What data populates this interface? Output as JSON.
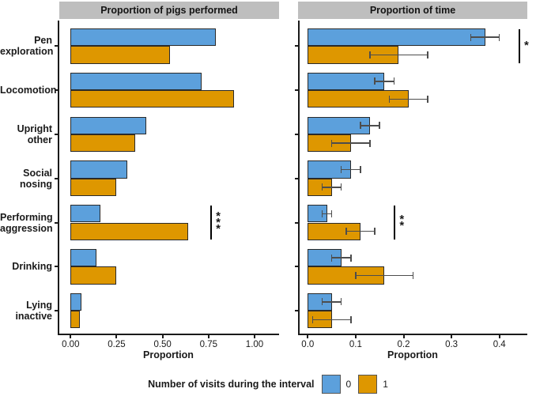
{
  "figure": {
    "x_axis_title": "Proportion",
    "colors": {
      "series_blue": "#5CA0DC",
      "series_orange": "#DE9700",
      "strip_background": "#BEBEBE",
      "bar_border": "#2A2A2A",
      "error_bar": "#4D4D4D",
      "axis": "#1A1A1A"
    },
    "legend": {
      "title": "Number of visits during the interval",
      "items": [
        {
          "label": "0",
          "color": "#5CA0DC"
        },
        {
          "label": "1",
          "color": "#DE9700"
        }
      ]
    }
  },
  "chart_data": [
    {
      "type": "bar",
      "orientation": "horizontal",
      "title": "Proportion of pigs performed",
      "xlabel": "Proportion",
      "xlim": [
        0,
        1.15
      ],
      "xticks": [
        0,
        0.25,
        0.5,
        0.75,
        1.0
      ],
      "xtick_labels": [
        "0.00",
        "0.25",
        "0.50",
        "0.75",
        "1.00"
      ],
      "categories": [
        "Pen\nexploration",
        "Locomotion",
        "Upright\nother",
        "Social\nnosing",
        "Performing\naggression",
        "Drinking",
        "Lying\ninactive"
      ],
      "grid": false,
      "legend_position": "bottom",
      "series": [
        {
          "name": "0",
          "color": "#5CA0DC",
          "values": [
            0.79,
            0.71,
            0.41,
            0.31,
            0.16,
            0.14,
            0.06
          ]
        },
        {
          "name": "1",
          "color": "#DE9700",
          "values": [
            0.54,
            0.89,
            0.35,
            0.25,
            0.64,
            0.25,
            0.05
          ]
        }
      ],
      "significance": [
        {
          "row": 4,
          "category": "Performing aggression",
          "label": "***",
          "x": 0.76
        }
      ]
    },
    {
      "type": "bar",
      "orientation": "horizontal",
      "title": "Proportion of time",
      "xlabel": "Proportion",
      "xlim": [
        0,
        0.46
      ],
      "xticks": [
        0,
        0.1,
        0.2,
        0.3,
        0.4
      ],
      "xtick_labels": [
        "0.0",
        "0.1",
        "0.2",
        "0.3",
        "0.4"
      ],
      "categories": [
        "Pen\nexploration",
        "Locomotion",
        "Upright\nother",
        "Social\nnosing",
        "Performing\naggression",
        "Drinking",
        "Lying\ninactive"
      ],
      "grid": false,
      "legend_position": "bottom",
      "series": [
        {
          "name": "0",
          "color": "#5CA0DC",
          "values": [
            0.37,
            0.16,
            0.13,
            0.09,
            0.04,
            0.07,
            0.05
          ],
          "error_low": [
            0.34,
            0.14,
            0.11,
            0.07,
            0.03,
            0.05,
            0.03
          ],
          "error_high": [
            0.4,
            0.18,
            0.15,
            0.11,
            0.05,
            0.09,
            0.07
          ]
        },
        {
          "name": "1",
          "color": "#DE9700",
          "values": [
            0.19,
            0.21,
            0.09,
            0.05,
            0.11,
            0.16,
            0.05
          ],
          "error_low": [
            0.13,
            0.17,
            0.05,
            0.03,
            0.08,
            0.1,
            0.01
          ],
          "error_high": [
            0.25,
            0.25,
            0.13,
            0.07,
            0.14,
            0.22,
            0.09
          ]
        }
      ],
      "significance": [
        {
          "row": 0,
          "category": "Pen exploration",
          "label": "*",
          "x": 0.44
        },
        {
          "row": 4,
          "category": "Performing aggression",
          "label": "**",
          "x": 0.18
        }
      ]
    }
  ]
}
